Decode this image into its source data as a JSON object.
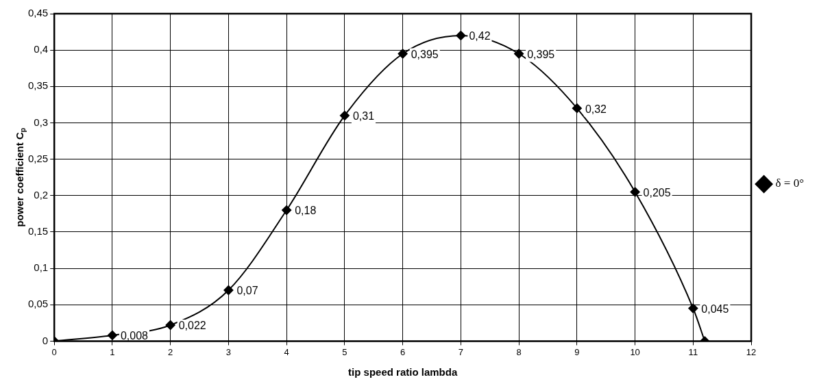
{
  "chart_data": {
    "type": "line",
    "xlabel": "tip speed ratio lambda",
    "ylabel": "power coefficient C$_{p}$",
    "x": [
      0,
      1,
      2,
      3,
      4,
      5,
      6,
      7,
      8,
      9,
      10,
      11,
      11.2
    ],
    "series": [
      {
        "name": "δ = 0°",
        "color": "#000000",
        "values": [
          0,
          0.008,
          0.022,
          0.07,
          0.18,
          0.31,
          0.395,
          0.42,
          0.395,
          0.32,
          0.205,
          0.045,
          0
        ],
        "value_labels": [
          null,
          "0,008",
          "0,022",
          "0,07",
          "0,18",
          "0,31",
          "0,395",
          "0,42",
          "0,395",
          "0,32",
          "0,205",
          "0,045",
          null
        ]
      }
    ],
    "xlim": [
      0,
      12
    ],
    "xticks": [
      0,
      1,
      2,
      3,
      4,
      5,
      6,
      7,
      8,
      9,
      10,
      11,
      12
    ],
    "ylim": [
      0,
      0.45
    ],
    "yticks": [
      {
        "value": 0,
        "label": "0"
      },
      {
        "value": 0.05,
        "label": "0,05"
      },
      {
        "value": 0.1,
        "label": "0,1"
      },
      {
        "value": 0.15,
        "label": "0,15"
      },
      {
        "value": 0.2,
        "label": "0,2"
      },
      {
        "value": 0.25,
        "label": "0,25"
      },
      {
        "value": 0.3,
        "label": "0,3"
      },
      {
        "value": 0.35,
        "label": "0,35"
      },
      {
        "value": 0.4,
        "label": "0,4"
      },
      {
        "value": 0.45,
        "label": "0,45"
      }
    ],
    "grid": true,
    "legend": "right",
    "marker": "diamond",
    "line_style": "solid"
  }
}
